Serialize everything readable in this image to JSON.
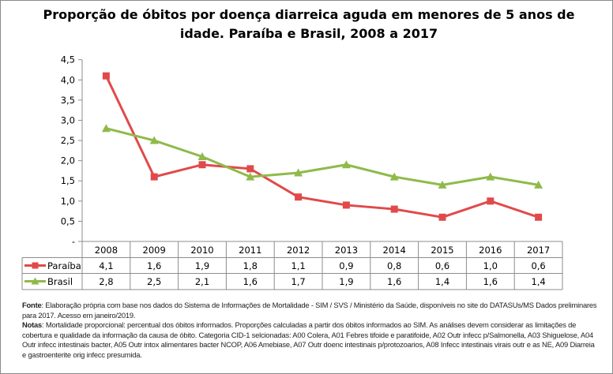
{
  "chart_data": {
    "type": "line",
    "title": "Proporção de óbitos por doença diarreica aguda em menores de 5 anos de idade. Paraíba e Brasil, 2008 a 2017",
    "categories": [
      "2008",
      "2009",
      "2010",
      "2011",
      "2012",
      "2013",
      "2014",
      "2015",
      "2016",
      "2017"
    ],
    "series": [
      {
        "name": "Paraíba",
        "color": "#e04a4a",
        "marker": "square",
        "values": [
          4.1,
          1.6,
          1.9,
          1.8,
          1.1,
          0.9,
          0.8,
          0.6,
          1.0,
          0.6
        ],
        "labels": [
          "4,1",
          "1,6",
          "1,9",
          "1,8",
          "1,1",
          "0,9",
          "0,8",
          "0,6",
          "1,0",
          "0,6"
        ]
      },
      {
        "name": "Brasil",
        "color": "#8fba4a",
        "marker": "triangle",
        "values": [
          2.8,
          2.5,
          2.1,
          1.6,
          1.7,
          1.9,
          1.6,
          1.4,
          1.6,
          1.4
        ],
        "labels": [
          "2,8",
          "2,5",
          "2,1",
          "1,6",
          "1,7",
          "1,9",
          "1,6",
          "1,4",
          "1,6",
          "1,4"
        ]
      }
    ],
    "ylim": [
      0,
      4.5
    ],
    "yticks": [
      "-",
      "0,5",
      "1,0",
      "1,5",
      "2,0",
      "2,5",
      "3,0",
      "3,5",
      "4,0",
      "4,5"
    ],
    "grid": false,
    "legend": "data-table"
  },
  "notes": {
    "fonte_label": "Fonte",
    "fonte_text": ": Elaboração própria com base nos dados do Sistema de Informações de Mortalidade - SIM / SVS / Ministério da Saúde, disponíveis no site do DATASUs/MS Dados preliminares para 2017. Acesso em janeiro/2019.",
    "notas_label": "Notas",
    "notas_text": ": Mortalidade proporcional: percentual dos óbitos informados. Proporções calculadas a partir dos óbitos informados ao SIM. As análises devem considerar as limitações de cobertura e qualidade da informação da causa de óbito. Categoria CID-1 selcionadas: A00 Colera, A01 Febres tifoide e paratifoide, A02 Outr infecc p/Salmonella, A03 Shiguelose, A04 Outr infecc intestinais bacter, A05 Outr intox alimentares bacter NCOP, A06 Amebiase, A07 Outr doenc intestinais p/protozoarios, A08 Infecc intestinais virais outr e as NE, A09 Diarreia e gastroenterite orig infecc presumida."
  }
}
